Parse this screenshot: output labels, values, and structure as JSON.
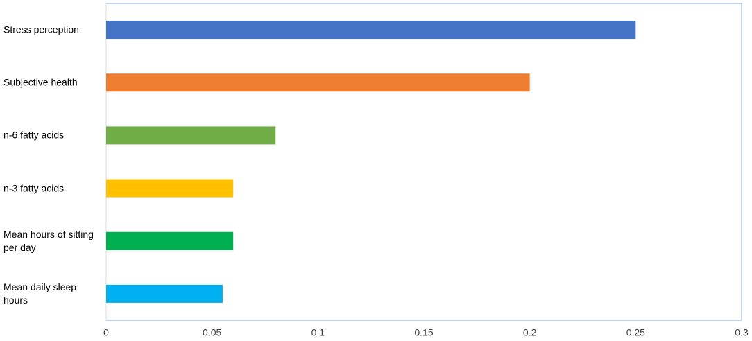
{
  "chart_data": {
    "type": "bar",
    "orientation": "horizontal",
    "categories": [
      "Stress perception",
      "Subjective health",
      "n-6 fatty acids",
      "n-3 fatty acids",
      "Mean hours of sitting per day",
      "Mean daily sleep hours"
    ],
    "values": [
      0.25,
      0.2,
      0.08,
      0.06,
      0.06,
      0.055
    ],
    "colors": [
      "#4472c4",
      "#ed7d31",
      "#70ad47",
      "#ffc000",
      "#00b050",
      "#00b0f0"
    ],
    "xlim": [
      0,
      0.3
    ],
    "xticks": [
      0,
      0.05,
      0.1,
      0.15,
      0.2,
      0.25,
      0.3
    ]
  }
}
